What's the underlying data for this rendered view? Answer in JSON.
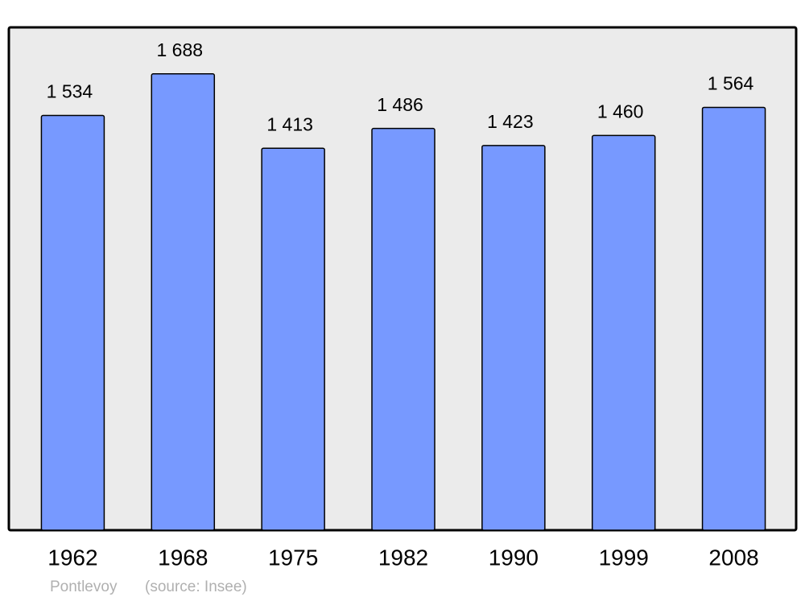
{
  "chart_data": {
    "type": "bar",
    "categories": [
      "1962",
      "1968",
      "1975",
      "1982",
      "1990",
      "1999",
      "2008"
    ],
    "values": [
      1534,
      1688,
      1413,
      1486,
      1423,
      1460,
      1564
    ],
    "value_labels": [
      "1 534",
      "1 688",
      "1 413",
      "1 486",
      "1 423",
      "1 460",
      "1 564"
    ],
    "color": "#7799ff",
    "ylim": [
      0,
      1860
    ],
    "caption": "Pontlevoy",
    "source": "(source: Insee)"
  }
}
